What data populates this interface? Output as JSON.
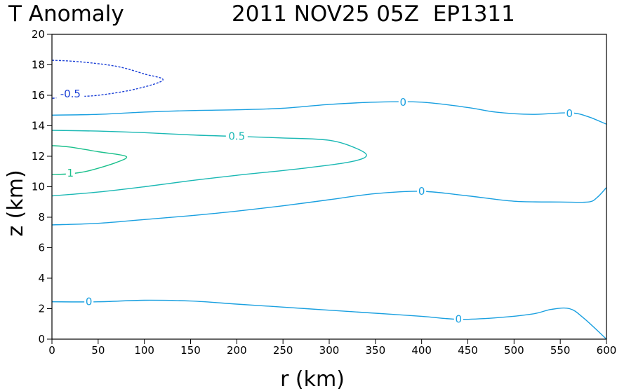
{
  "chart_data": {
    "type": "contour",
    "title_left": "T Anomaly",
    "title_right": "2011 NOV25 05Z  EP1311",
    "xlabel": "r (km)",
    "ylabel": "z (km)",
    "xlim": [
      0,
      600
    ],
    "ylim": [
      0,
      20
    ],
    "xticks": [
      "0",
      "50",
      "100",
      "150",
      "200",
      "250",
      "300",
      "350",
      "400",
      "450",
      "500",
      "550",
      "600"
    ],
    "yticks": [
      "0",
      "2",
      "4",
      "6",
      "8",
      "10",
      "12",
      "14",
      "16",
      "18",
      "20"
    ],
    "grid": false,
    "contours": [
      {
        "level": "-0.5",
        "color": "#1a3fd6",
        "dashed": true,
        "points": [
          [
            0,
            18.3
          ],
          [
            30,
            18.2
          ],
          [
            70,
            17.9
          ],
          [
            100,
            17.4
          ],
          [
            120,
            17.0
          ],
          [
            90,
            16.4
          ],
          [
            50,
            16.0
          ],
          [
            20,
            15.9
          ],
          [
            0,
            15.8
          ]
        ],
        "labels": [
          {
            "text": "-0.5",
            "x": 20,
            "y": 16.1
          }
        ]
      },
      {
        "level": "0",
        "color": "#1aa0e0",
        "dashed": false,
        "points": [
          [
            0,
            14.7
          ],
          [
            50,
            14.75
          ],
          [
            100,
            14.9
          ],
          [
            150,
            15.0
          ],
          [
            200,
            15.05
          ],
          [
            250,
            15.15
          ],
          [
            300,
            15.4
          ],
          [
            350,
            15.55
          ],
          [
            400,
            15.55
          ],
          [
            450,
            15.2
          ],
          [
            480,
            14.9
          ],
          [
            520,
            14.75
          ],
          [
            560,
            14.85
          ],
          [
            580,
            14.6
          ],
          [
            600,
            14.1
          ]
        ],
        "labels": [
          {
            "text": "0",
            "x": 380,
            "y": 15.55
          },
          {
            "text": "0",
            "x": 560,
            "y": 14.8
          }
        ]
      },
      {
        "level": "0.5",
        "color": "#1ab8b4",
        "dashed": false,
        "points": [
          [
            0,
            13.7
          ],
          [
            50,
            13.65
          ],
          [
            100,
            13.55
          ],
          [
            150,
            13.4
          ],
          [
            200,
            13.3
          ],
          [
            250,
            13.2
          ],
          [
            300,
            13.05
          ],
          [
            330,
            12.5
          ],
          [
            340,
            12.0
          ],
          [
            320,
            11.6
          ],
          [
            270,
            11.2
          ],
          [
            200,
            10.75
          ],
          [
            150,
            10.4
          ],
          [
            100,
            10.0
          ],
          [
            50,
            9.65
          ],
          [
            0,
            9.4
          ]
        ],
        "labels": [
          {
            "text": "0.5",
            "x": 200,
            "y": 13.3
          }
        ]
      },
      {
        "level": "1",
        "color": "#1ac08c",
        "dashed": false,
        "points": [
          [
            0,
            12.7
          ],
          [
            20,
            12.6
          ],
          [
            50,
            12.3
          ],
          [
            80,
            12.0
          ],
          [
            70,
            11.6
          ],
          [
            40,
            11.05
          ],
          [
            20,
            10.85
          ],
          [
            0,
            10.8
          ]
        ],
        "labels": [
          {
            "text": "1",
            "x": 20,
            "y": 10.9
          }
        ]
      },
      {
        "level": "0",
        "color": "#1aa0e0",
        "dashed": false,
        "points": [
          [
            0,
            7.5
          ],
          [
            50,
            7.6
          ],
          [
            100,
            7.85
          ],
          [
            150,
            8.1
          ],
          [
            200,
            8.4
          ],
          [
            250,
            8.75
          ],
          [
            300,
            9.15
          ],
          [
            350,
            9.55
          ],
          [
            400,
            9.7
          ],
          [
            450,
            9.4
          ],
          [
            500,
            9.05
          ],
          [
            550,
            9.0
          ],
          [
            580,
            9.0
          ],
          [
            590,
            9.3
          ],
          [
            600,
            9.95
          ]
        ],
        "labels": [
          {
            "text": "0",
            "x": 400,
            "y": 9.7
          }
        ]
      },
      {
        "level": "0",
        "color": "#1aa0e0",
        "dashed": false,
        "points": [
          [
            0,
            2.45
          ],
          [
            50,
            2.45
          ],
          [
            100,
            2.55
          ],
          [
            150,
            2.5
          ],
          [
            200,
            2.3
          ],
          [
            250,
            2.1
          ],
          [
            300,
            1.9
          ],
          [
            350,
            1.7
          ],
          [
            400,
            1.5
          ],
          [
            440,
            1.3
          ],
          [
            480,
            1.4
          ],
          [
            520,
            1.65
          ],
          [
            540,
            1.95
          ],
          [
            560,
            2.0
          ],
          [
            575,
            1.4
          ],
          [
            600,
            0.0
          ]
        ],
        "labels": [
          {
            "text": "0",
            "x": 40,
            "y": 2.45
          },
          {
            "text": "0",
            "x": 440,
            "y": 1.3
          }
        ]
      }
    ]
  }
}
